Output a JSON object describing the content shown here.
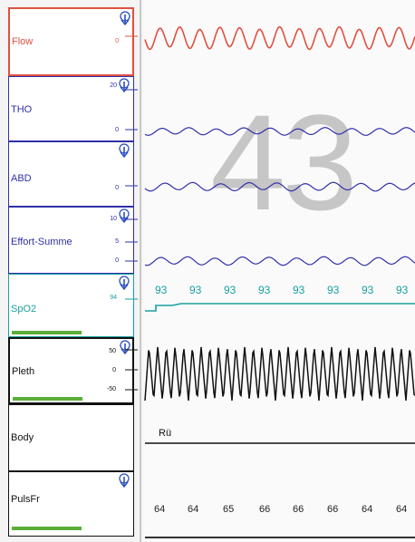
{
  "overlay_number": "43",
  "channels": {
    "flow": {
      "label": "Flow",
      "tick_0": "0",
      "color": "#e05040"
    },
    "tho": {
      "label": "THO",
      "tick_top": "20",
      "tick_0": "0",
      "color": "#3030a8"
    },
    "abd": {
      "label": "ABD",
      "tick_0": "0",
      "color": "#3030a8"
    },
    "effort": {
      "label": "Effort-Summe",
      "tick_top": "10",
      "tick_mid": "5",
      "tick_0": "0",
      "color": "#3030a8"
    },
    "spo2": {
      "label": "SpO2",
      "tick_top": "94",
      "color": "#1aa0a0",
      "values": [
        "93",
        "93",
        "93",
        "93",
        "93",
        "93",
        "93",
        "93"
      ]
    },
    "pleth": {
      "label": "Pleth",
      "tick_top": "50",
      "tick_mid": "0",
      "tick_bottom": "-50",
      "color": "#111111"
    },
    "body": {
      "label": "Body",
      "position_label": "Rü"
    },
    "pulsfr": {
      "label": "PulsFr",
      "values": [
        "64",
        "64",
        "65",
        "66",
        "66",
        "66",
        "64",
        "64"
      ]
    }
  },
  "signal_quality": {
    "spo2": 0.7,
    "pleth": 0.7,
    "pulsfr": 0.7
  }
}
